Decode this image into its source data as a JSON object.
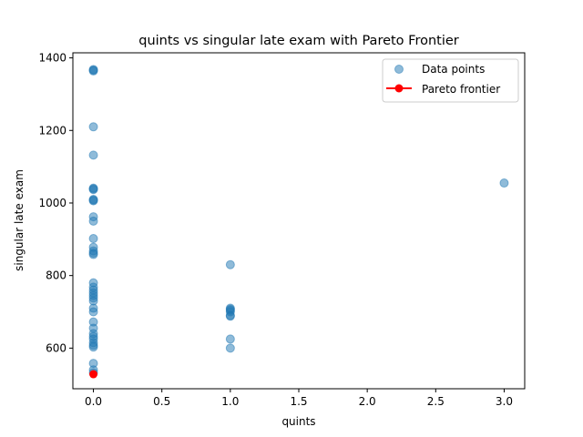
{
  "chart_data": {
    "type": "scatter",
    "title": "quints vs singular late exam with Pareto Frontier",
    "xlabel": "quints",
    "ylabel": "singular late exam",
    "xlim": [
      -0.15,
      3.15
    ],
    "ylim": [
      488,
      1414
    ],
    "xticks": [
      "0.0",
      "0.5",
      "1.0",
      "1.5",
      "2.0",
      "2.5",
      "3.0"
    ],
    "yticks": [
      "600",
      "800",
      "1000",
      "1200",
      "1400"
    ],
    "grid": false,
    "legend_position": "top-right",
    "series": [
      {
        "name": "Data points",
        "color": "#1f77b4",
        "alpha": 0.5,
        "points": [
          [
            0,
            1368
          ],
          [
            0,
            1366
          ],
          [
            0,
            1364
          ],
          [
            0,
            1210
          ],
          [
            0,
            1132
          ],
          [
            0,
            1041
          ],
          [
            0,
            1039
          ],
          [
            0,
            1037
          ],
          [
            0,
            1010
          ],
          [
            0,
            1008
          ],
          [
            0,
            1006
          ],
          [
            0,
            962
          ],
          [
            0,
            950
          ],
          [
            0,
            902
          ],
          [
            0,
            878
          ],
          [
            0,
            868
          ],
          [
            0,
            862
          ],
          [
            0,
            858
          ],
          [
            0,
            780
          ],
          [
            0,
            768
          ],
          [
            0,
            760
          ],
          [
            0,
            752
          ],
          [
            0,
            745
          ],
          [
            0,
            738
          ],
          [
            0,
            730
          ],
          [
            0,
            710
          ],
          [
            0,
            700
          ],
          [
            0,
            672
          ],
          [
            0,
            655
          ],
          [
            0,
            640
          ],
          [
            0,
            632
          ],
          [
            0,
            625
          ],
          [
            0,
            615
          ],
          [
            0,
            608
          ],
          [
            0,
            603
          ],
          [
            0,
            558
          ],
          [
            0,
            540
          ],
          [
            0,
            532
          ],
          [
            1,
            830
          ],
          [
            1,
            710
          ],
          [
            1,
            707
          ],
          [
            1,
            704
          ],
          [
            1,
            700
          ],
          [
            1,
            690
          ],
          [
            1,
            688
          ],
          [
            1,
            625
          ],
          [
            1,
            600
          ],
          [
            3,
            1055
          ]
        ]
      },
      {
        "name": "Pareto frontier",
        "color": "#ff0000",
        "points": [
          [
            0,
            528
          ]
        ]
      }
    ]
  }
}
